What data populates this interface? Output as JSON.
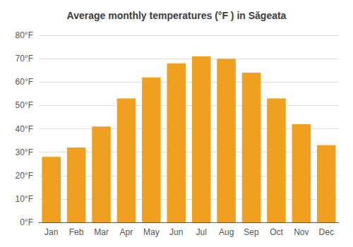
{
  "chart_data": {
    "type": "bar",
    "title": "Average monthly temperatures (°F ) in Săgeata",
    "categories": [
      "Jan",
      "Feb",
      "Mar",
      "Apr",
      "May",
      "Jun",
      "Jul",
      "Aug",
      "Sep",
      "Oct",
      "Nov",
      "Dec"
    ],
    "values": [
      28,
      32,
      41,
      53,
      62,
      68,
      71,
      70,
      64,
      53,
      42,
      33
    ],
    "color": "#F0A020",
    "ylim": [
      0,
      80
    ],
    "yticks": [
      {
        "value": 0,
        "label": "0°F"
      },
      {
        "value": 10,
        "label": "10°F"
      },
      {
        "value": 20,
        "label": "20°F"
      },
      {
        "value": 30,
        "label": "30°F"
      },
      {
        "value": 40,
        "label": "40°F"
      },
      {
        "value": 50,
        "label": "50°F"
      },
      {
        "value": 60,
        "label": "60°F"
      },
      {
        "value": 70,
        "label": "70°F"
      },
      {
        "value": 80,
        "label": "80°F"
      }
    ],
    "grid": true
  }
}
